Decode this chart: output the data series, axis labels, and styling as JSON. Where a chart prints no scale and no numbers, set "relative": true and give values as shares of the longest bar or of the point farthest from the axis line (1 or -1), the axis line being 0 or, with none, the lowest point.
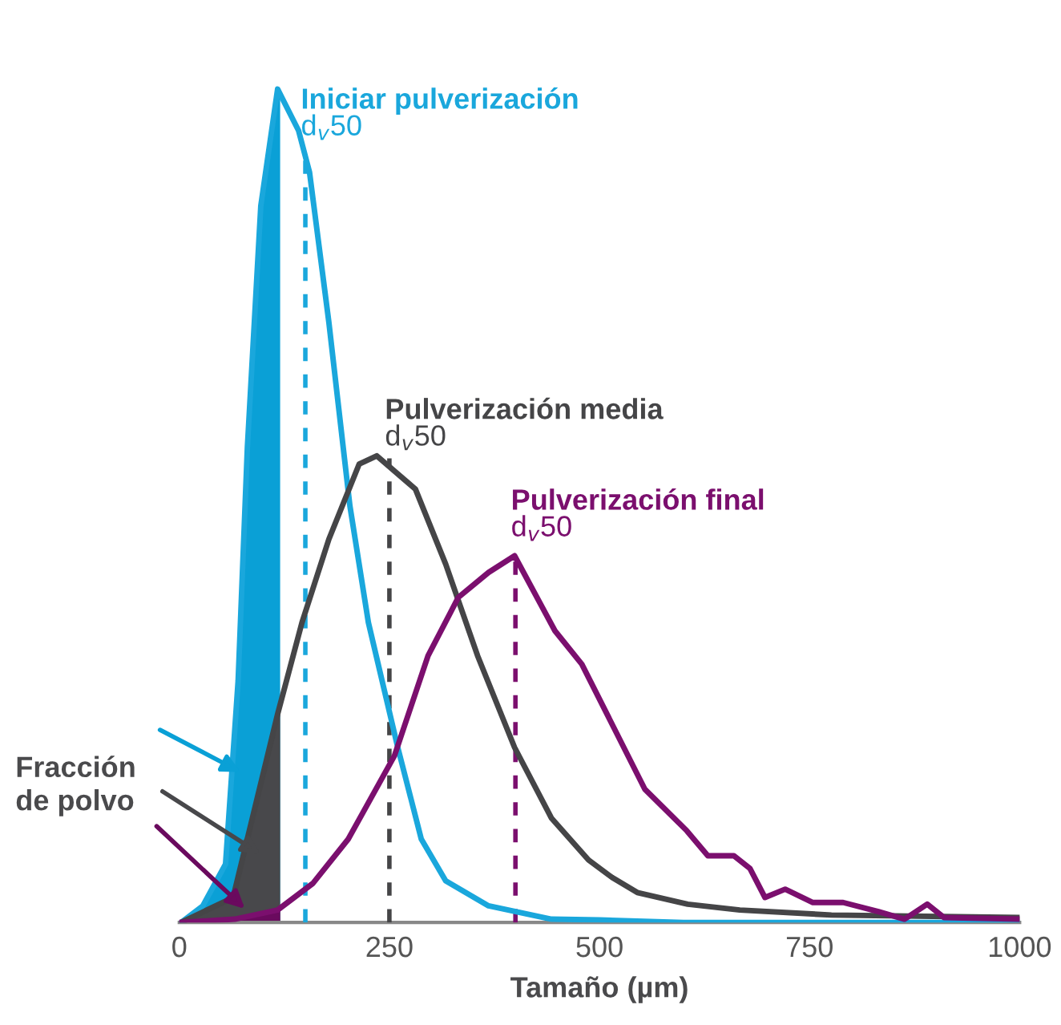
{
  "chart_data": {
    "type": "line",
    "relative": true,
    "xlabel": "Tamaño (µm)",
    "xlim": [
      0,
      1000
    ],
    "xticks": [
      0,
      250,
      500,
      750,
      1000
    ],
    "grid": false,
    "legend": false,
    "series": [
      {
        "name": "Iniciar pulverización",
        "color": "#1aa7dc",
        "x": [
          2,
          28,
          55,
          70,
          81,
          97,
          117,
          142,
          155,
          178,
          203,
          225,
          260,
          288,
          317,
          368,
          443,
          500,
          600,
          1000
        ],
        "values": [
          0,
          0.02,
          0.07,
          0.29,
          0.57,
          0.86,
          1.0,
          0.95,
          0.9,
          0.72,
          0.5,
          0.36,
          0.21,
          0.1,
          0.05,
          0.02,
          0.004,
          0.003,
          0,
          0
        ]
      },
      {
        "name": "Pulverización media",
        "color": "#454547",
        "x": [
          2,
          64,
          117,
          146,
          178,
          214,
          235,
          281,
          317,
          355,
          399,
          443,
          487,
          515,
          545,
          605,
          667,
          776,
          1000
        ],
        "values": [
          0,
          0.03,
          0.25,
          0.36,
          0.46,
          0.55,
          0.56,
          0.52,
          0.43,
          0.32,
          0.21,
          0.125,
          0.075,
          0.054,
          0.036,
          0.022,
          0.015,
          0.009,
          0.006
        ]
      },
      {
        "name": "Pulverización final",
        "color": "#7b0f6e",
        "x": [
          0,
          66,
          117,
          159,
          201,
          256,
          296,
          332,
          368,
          399,
          447,
          479,
          554,
          604,
          629,
          660,
          679,
          697,
          721,
          754,
          790,
          832,
          863,
          890,
          910,
          1000
        ],
        "values": [
          0,
          0.004,
          0.015,
          0.047,
          0.1,
          0.2,
          0.32,
          0.39,
          0.42,
          0.44,
          0.35,
          0.31,
          0.16,
          0.11,
          0.08,
          0.08,
          0.065,
          0.03,
          0.04,
          0.024,
          0.024,
          0.013,
          0.004,
          0.022,
          0.006,
          0.004
        ]
      },
      {
        "type": "area",
        "color": "#0aa0d6",
        "x": [
          2,
          28,
          55,
          70,
          81,
          97,
          117,
          120
        ],
        "values": [
          0,
          0.02,
          0.07,
          0.29,
          0.57,
          0.86,
          1.0,
          0.995
        ]
      },
      {
        "type": "area",
        "color": "#48484b",
        "x": [
          2,
          64,
          117,
          120
        ],
        "values": [
          0,
          0.03,
          0.25,
          0.26
        ]
      },
      {
        "type": "area",
        "color": "#6a0a5e",
        "x": [
          0,
          66,
          117,
          120
        ],
        "values": [
          0,
          0.004,
          0.015,
          0.017
        ]
      }
    ],
    "ref_lines": [
      {
        "axis": "x",
        "value": 150,
        "label": "d$_{v}$50",
        "color": "#1aa7dc",
        "line_style": "dashed"
      },
      {
        "axis": "x",
        "value": 250,
        "label": "d$_{v}$50",
        "color": "#454547",
        "line_style": "dashed"
      },
      {
        "axis": "x",
        "value": 400,
        "label": "d$_{v}$50",
        "color": "#7b0f6e",
        "line_style": "dashed"
      }
    ],
    "annotations": [
      "Fracción\nde polvo"
    ]
  }
}
